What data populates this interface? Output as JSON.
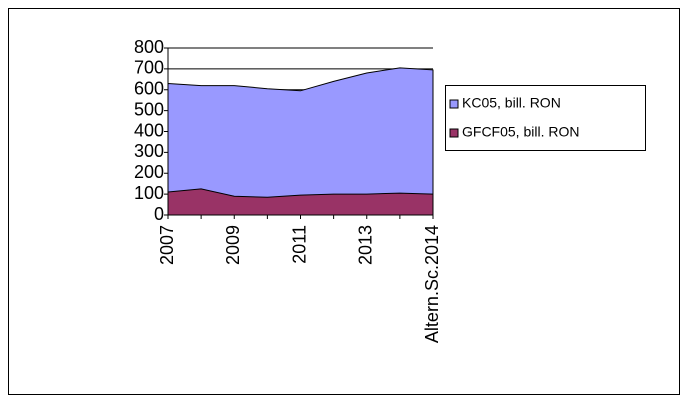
{
  "chart_data": {
    "type": "area",
    "categories": [
      "2007",
      null,
      "2009",
      null,
      "2011",
      null,
      "2013",
      null,
      "Altern.Sc.2014"
    ],
    "series": [
      {
        "name": "KC05, bill. RON",
        "color": "#9999ff",
        "values": [
          630,
          620,
          620,
          605,
          595,
          640,
          680,
          705,
          695
        ]
      },
      {
        "name": "GFCF05, bill. RON",
        "color": "#993366",
        "values": [
          110,
          125,
          90,
          85,
          95,
          100,
          100,
          105,
          100
        ]
      }
    ],
    "ylim": [
      0,
      800
    ],
    "yticks": [
      0,
      100,
      200,
      300,
      400,
      500,
      600,
      700,
      800
    ],
    "grid": true,
    "legend": "right"
  }
}
